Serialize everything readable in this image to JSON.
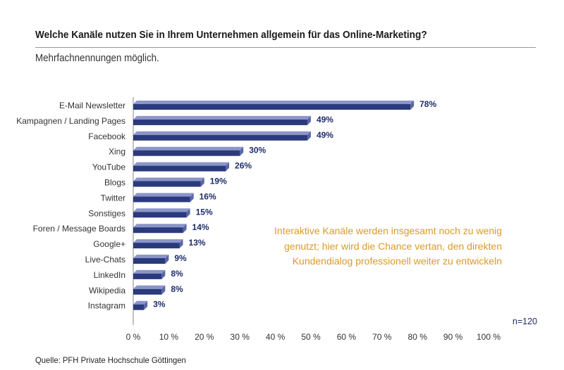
{
  "chart_data": {
    "type": "bar",
    "orientation": "horizontal",
    "title": "Welche Kanäle nutzen Sie in Ihrem Unternehmen allgemein für das Online-Marketing?",
    "subtitle": "Mehrfachnennungen möglich.",
    "categories": [
      "E-Mail Newsletter",
      "Kampagnen / Landing Pages",
      "Facebook",
      "Xing",
      "YouTube",
      "Blogs",
      "Twitter",
      "Sonstiges",
      "Foren / Message Boards",
      "Google+",
      "Live-Chats",
      "LinkedIn",
      "Wikipedia",
      "Instagram"
    ],
    "values": [
      78,
      49,
      49,
      30,
      26,
      19,
      16,
      15,
      14,
      13,
      9,
      8,
      8,
      3
    ],
    "value_labels": [
      "78%",
      "49%",
      "49%",
      "30%",
      "26%",
      "19%",
      "16%",
      "15%",
      "14%",
      "13%",
      "9%",
      "8%",
      "8%",
      "3%"
    ],
    "xlim": [
      0,
      100
    ],
    "xticks": [
      "0 %",
      "10 %",
      "20 %",
      "30 %",
      "40 %",
      "50 %",
      "60 %",
      "70 %",
      "80 %",
      "90 %",
      "100 %"
    ],
    "sample_size": "n=120",
    "bar_color": "#2a3a7c",
    "bar_top_color": "#8b95c9",
    "bar_end_color": "#5a67a6",
    "value_label_color": "#1f2d6b",
    "annotation_color": "#d99a2b"
  },
  "annotation": {
    "lines": [
      "Interaktive Kanäle werden insgesamt noch zu wenig",
      "genutzt; hier wird die Chance vertan, den direkten",
      "Kundendialog professionell weiter zu entwickeln"
    ]
  },
  "source": "Quelle: PFH Private Hochschule Göttingen"
}
